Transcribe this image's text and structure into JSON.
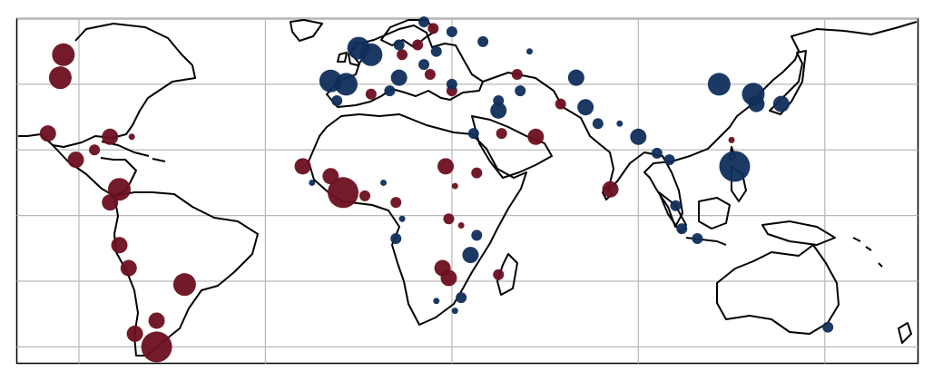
{
  "map": {
    "projection": "plate-carree",
    "extent": {
      "lon": [
        -110,
        180
      ],
      "lat": [
        -45,
        60
      ]
    },
    "grid": true,
    "gridline_color": "#b8b8b8",
    "coastline_color": "#000000",
    "series_colors": {
      "dark_red": "#6b0f1f",
      "dark_blue": "#0f2e5b"
    }
  },
  "points": [
    {
      "lon": -95,
      "lat": 49,
      "color": "dark_red",
      "size": "large"
    },
    {
      "lon": -96,
      "lat": 42,
      "color": "dark_red",
      "size": "large"
    },
    {
      "lon": -100,
      "lat": 25,
      "color": "dark_red",
      "size": "medium"
    },
    {
      "lon": -91,
      "lat": 17,
      "color": "dark_red",
      "size": "medium"
    },
    {
      "lon": -85,
      "lat": 20,
      "color": "dark_red",
      "size": "small"
    },
    {
      "lon": -80,
      "lat": 24,
      "color": "dark_red",
      "size": "medium"
    },
    {
      "lon": -73,
      "lat": 24,
      "color": "dark_red",
      "size": "tiny"
    },
    {
      "lon": -77,
      "lat": 8,
      "color": "dark_red",
      "size": "large"
    },
    {
      "lon": -80,
      "lat": 4,
      "color": "dark_red",
      "size": "medium"
    },
    {
      "lon": -77,
      "lat": -9,
      "color": "dark_red",
      "size": "medium"
    },
    {
      "lon": -74,
      "lat": -16,
      "color": "dark_red",
      "size": "medium"
    },
    {
      "lon": -56,
      "lat": -21,
      "color": "dark_red",
      "size": "large"
    },
    {
      "lon": -65,
      "lat": -32,
      "color": "dark_red",
      "size": "medium"
    },
    {
      "lon": -72,
      "lat": -36,
      "color": "dark_red",
      "size": "medium"
    },
    {
      "lon": -65,
      "lat": -40,
      "color": "dark_red",
      "size": "xlarge"
    },
    {
      "lon": -18,
      "lat": 15,
      "color": "dark_red",
      "size": "medium"
    },
    {
      "lon": -9,
      "lat": 12,
      "color": "dark_red",
      "size": "medium"
    },
    {
      "lon": -5,
      "lat": 7,
      "color": "dark_red",
      "size": "xlarge"
    },
    {
      "lon": 2,
      "lat": 6,
      "color": "dark_red",
      "size": "small"
    },
    {
      "lon": 12,
      "lat": 4,
      "color": "dark_red",
      "size": "small"
    },
    {
      "lon": 28,
      "lat": 15,
      "color": "dark_red",
      "size": "medium"
    },
    {
      "lon": 38,
      "lat": 13,
      "color": "dark_red",
      "size": "small"
    },
    {
      "lon": 31,
      "lat": 9,
      "color": "dark_red",
      "size": "tiny"
    },
    {
      "lon": 29,
      "lat": -1,
      "color": "dark_red",
      "size": "small"
    },
    {
      "lon": 33,
      "lat": -3,
      "color": "dark_red",
      "size": "tiny"
    },
    {
      "lon": 27,
      "lat": -16,
      "color": "dark_red",
      "size": "medium"
    },
    {
      "lon": 29,
      "lat": -19,
      "color": "dark_red",
      "size": "medium"
    },
    {
      "lon": 45,
      "lat": -18,
      "color": "dark_red",
      "size": "small"
    },
    {
      "lon": 24,
      "lat": 57,
      "color": "dark_red",
      "size": "small"
    },
    {
      "lon": 19,
      "lat": 52,
      "color": "dark_red",
      "size": "small"
    },
    {
      "lon": 14,
      "lat": 49,
      "color": "dark_red",
      "size": "small"
    },
    {
      "lon": 23,
      "lat": 43,
      "color": "dark_red",
      "size": "small"
    },
    {
      "lon": 30,
      "lat": 38,
      "color": "dark_red",
      "size": "small"
    },
    {
      "lon": 4,
      "lat": 37,
      "color": "dark_red",
      "size": "small"
    },
    {
      "lon": 51,
      "lat": 43,
      "color": "dark_red",
      "size": "small"
    },
    {
      "lon": 65,
      "lat": 34,
      "color": "dark_red",
      "size": "small"
    },
    {
      "lon": 46,
      "lat": 25,
      "color": "dark_red",
      "size": "small"
    },
    {
      "lon": 57,
      "lat": 24,
      "color": "dark_red",
      "size": "medium"
    },
    {
      "lon": 81,
      "lat": 8,
      "color": "dark_red",
      "size": "medium"
    },
    {
      "lon": 120,
      "lat": 23,
      "color": "dark_red",
      "size": "tiny"
    },
    {
      "lon": 21,
      "lat": 59,
      "color": "dark_blue",
      "size": "small"
    },
    {
      "lon": 30,
      "lat": 56,
      "color": "dark_blue",
      "size": "small"
    },
    {
      "lon": 40,
      "lat": 53,
      "color": "dark_blue",
      "size": "small"
    },
    {
      "lon": 25,
      "lat": 50,
      "color": "dark_blue",
      "size": "small"
    },
    {
      "lon": 0,
      "lat": 51,
      "color": "dark_blue",
      "size": "large"
    },
    {
      "lon": 4,
      "lat": 49,
      "color": "dark_blue",
      "size": "large"
    },
    {
      "lon": 13,
      "lat": 52,
      "color": "dark_blue",
      "size": "small"
    },
    {
      "lon": 21,
      "lat": 46,
      "color": "dark_blue",
      "size": "small"
    },
    {
      "lon": -9,
      "lat": 41,
      "color": "dark_blue",
      "size": "large"
    },
    {
      "lon": -4,
      "lat": 40,
      "color": "dark_blue",
      "size": "large"
    },
    {
      "lon": 13,
      "lat": 42,
      "color": "dark_blue",
      "size": "medium"
    },
    {
      "lon": 10,
      "lat": 38,
      "color": "dark_blue",
      "size": "small"
    },
    {
      "lon": 30,
      "lat": 40,
      "color": "dark_blue",
      "size": "small"
    },
    {
      "lon": -7,
      "lat": 35,
      "color": "dark_blue",
      "size": "small"
    },
    {
      "lon": 45,
      "lat": 35,
      "color": "dark_blue",
      "size": "small"
    },
    {
      "lon": 37,
      "lat": 25,
      "color": "dark_blue",
      "size": "small"
    },
    {
      "lon": 45,
      "lat": 32,
      "color": "dark_blue",
      "size": "medium"
    },
    {
      "lon": 52,
      "lat": 38,
      "color": "dark_blue",
      "size": "small"
    },
    {
      "lon": 55,
      "lat": 50,
      "color": "dark_blue",
      "size": "tiny"
    },
    {
      "lon": 70,
      "lat": 42,
      "color": "dark_blue",
      "size": "medium"
    },
    {
      "lon": 73,
      "lat": 33,
      "color": "dark_blue",
      "size": "medium"
    },
    {
      "lon": 77,
      "lat": 28,
      "color": "dark_blue",
      "size": "small"
    },
    {
      "lon": 84,
      "lat": 28,
      "color": "dark_blue",
      "size": "tiny"
    },
    {
      "lon": 90,
      "lat": 24,
      "color": "dark_blue",
      "size": "medium"
    },
    {
      "lon": 96,
      "lat": 19,
      "color": "dark_blue",
      "size": "small"
    },
    {
      "lon": 100,
      "lat": 17,
      "color": "dark_blue",
      "size": "small"
    },
    {
      "lon": 102,
      "lat": 3,
      "color": "dark_blue",
      "size": "small"
    },
    {
      "lon": 104,
      "lat": -4,
      "color": "dark_blue",
      "size": "small"
    },
    {
      "lon": 109,
      "lat": -7,
      "color": "dark_blue",
      "size": "small"
    },
    {
      "lon": 116,
      "lat": 40,
      "color": "dark_blue",
      "size": "large"
    },
    {
      "lon": 127,
      "lat": 37,
      "color": "dark_blue",
      "size": "large"
    },
    {
      "lon": 128,
      "lat": 34,
      "color": "dark_blue",
      "size": "medium"
    },
    {
      "lon": 136,
      "lat": 34,
      "color": "dark_blue",
      "size": "medium"
    },
    {
      "lon": 121,
      "lat": 15,
      "color": "dark_blue",
      "size": "xlarge"
    },
    {
      "lon": 151,
      "lat": -34,
      "color": "dark_blue",
      "size": "small"
    },
    {
      "lon": -15,
      "lat": 10,
      "color": "dark_blue",
      "size": "tiny"
    },
    {
      "lon": 8,
      "lat": 10,
      "color": "dark_blue",
      "size": "tiny"
    },
    {
      "lon": 14,
      "lat": -1,
      "color": "dark_blue",
      "size": "tiny"
    },
    {
      "lon": 12,
      "lat": -7,
      "color": "dark_blue",
      "size": "small"
    },
    {
      "lon": 38,
      "lat": -6,
      "color": "dark_blue",
      "size": "small"
    },
    {
      "lon": 36,
      "lat": -12,
      "color": "dark_blue",
      "size": "medium"
    },
    {
      "lon": 33,
      "lat": -25,
      "color": "dark_blue",
      "size": "small"
    },
    {
      "lon": 25,
      "lat": -26,
      "color": "dark_blue",
      "size": "tiny"
    },
    {
      "lon": 31,
      "lat": -29,
      "color": "dark_blue",
      "size": "tiny"
    }
  ]
}
